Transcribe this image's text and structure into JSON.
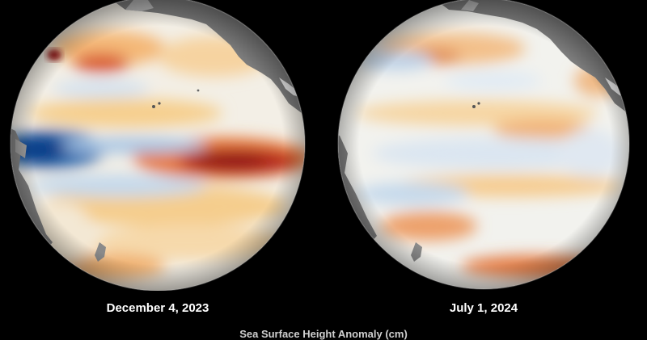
{
  "panels": [
    {
      "date": "December 4, 2023"
    },
    {
      "date": "July 1, 2024"
    }
  ],
  "footer": "Sea Surface Height Anomaly (cm)",
  "colors": {
    "background": "#000000",
    "land": "#7a7a7a",
    "neutral": "#f4f1ea",
    "warm_light": "#f6cf8e",
    "warm": "#e88a3c",
    "warm_strong": "#b0201b",
    "cool_light": "#c5d9ec",
    "cool": "#2b6cb0",
    "cool_strong": "#0d3f8a"
  }
}
